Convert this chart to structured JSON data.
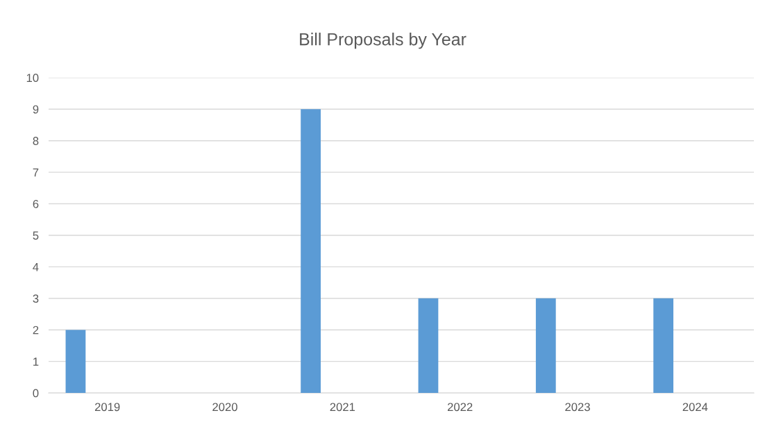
{
  "chart_data": {
    "type": "bar",
    "title": "Bill Proposals by Year",
    "categories": [
      "2019",
      "2020",
      "2021",
      "2022",
      "2023",
      "2024"
    ],
    "values": [
      2,
      0,
      9,
      3,
      3,
      3
    ],
    "color": "#5b9bd5",
    "ylim": [
      0,
      10
    ],
    "yticks": [
      0,
      1,
      2,
      3,
      4,
      5,
      6,
      7,
      8,
      9,
      10
    ],
    "grid": "y",
    "legend": false
  }
}
